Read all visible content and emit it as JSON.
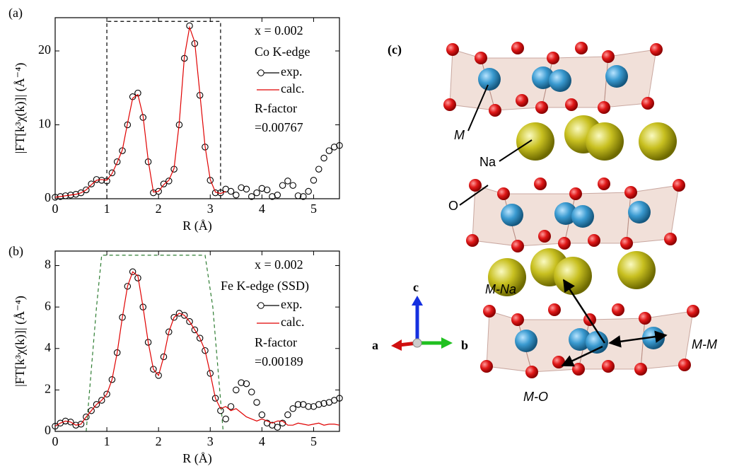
{
  "chart_data": [
    {
      "type": "line",
      "panel_label": "(a)",
      "xlabel": "R (Å)",
      "ylabel": "|FT[k³χ(k)]| (Å⁻⁴)",
      "annotations": [
        "x = 0.002",
        "Co K-edge",
        "R-factor",
        "=0.00767"
      ],
      "xlim": [
        0,
        5.5
      ],
      "ylim": [
        0,
        24.5
      ],
      "xticks": [
        0,
        1,
        2,
        3,
        4,
        5
      ],
      "yticks": [
        0,
        10,
        20
      ],
      "x": [
        0,
        0.1,
        0.2,
        0.3,
        0.4,
        0.5,
        0.6,
        0.7,
        0.8,
        0.9,
        1,
        1.1,
        1.2,
        1.3,
        1.4,
        1.5,
        1.6,
        1.7,
        1.8,
        1.9,
        2,
        2.1,
        2.2,
        2.3,
        2.4,
        2.5,
        2.6,
        2.7,
        2.8,
        2.9,
        3,
        3.1,
        3.2,
        3.3,
        3.4,
        3.5,
        3.6,
        3.7,
        3.8,
        3.9,
        4,
        4.1,
        4.2,
        4.3,
        4.4,
        4.5,
        4.6,
        4.7,
        4.8,
        4.9,
        5,
        5.1,
        5.2,
        5.3,
        5.4,
        5.5
      ],
      "series": [
        {
          "name": "exp.",
          "color": "#000000",
          "marker": "circle",
          "values": [
            0.2,
            0.3,
            0.4,
            0.5,
            0.6,
            0.8,
            1.2,
            2.0,
            2.6,
            2.5,
            2.4,
            3.5,
            5.0,
            6.5,
            10.0,
            13.8,
            14.3,
            11.0,
            5.0,
            0.8,
            1.0,
            2.0,
            2.4,
            4.0,
            10.0,
            19.0,
            23.4,
            21.0,
            14.0,
            7.0,
            2.5,
            0.8,
            0.8,
            1.3,
            1.0,
            0.5,
            1.5,
            1.3,
            0.3,
            0.8,
            1.4,
            1.2,
            0.3,
            0.5,
            1.8,
            2.4,
            1.8,
            0.4,
            0.3,
            1.0,
            2.5,
            4.0,
            5.5,
            6.5,
            7.0,
            7.2
          ]
        },
        {
          "name": "calc.",
          "color": "#e00000",
          "values": [
            0.2,
            0.3,
            0.4,
            0.5,
            0.6,
            0.8,
            1.2,
            1.9,
            2.5,
            2.6,
            2.5,
            3.4,
            4.9,
            6.6,
            10.2,
            13.6,
            14.1,
            11.2,
            5.2,
            0.9,
            1.0,
            1.9,
            2.5,
            4.1,
            10.2,
            19.2,
            23.2,
            21.2,
            14.2,
            7.1,
            2.6,
            0.9,
            0.7,
            1.0,
            null,
            null,
            null,
            null,
            null,
            null,
            null,
            null,
            null,
            null,
            null,
            null,
            null,
            null,
            null,
            null,
            null,
            null,
            null,
            null,
            null,
            null
          ]
        }
      ],
      "window": {
        "color": "#000000",
        "x": [
          1,
          1,
          3.2,
          3.2
        ],
        "values": [
          0,
          24,
          24,
          0
        ]
      }
    },
    {
      "type": "line",
      "panel_label": "(b)",
      "xlabel": "R (Å)",
      "ylabel": "|FT[k³χ(k)]| (Å⁻⁴)",
      "annotations": [
        "x = 0.002",
        "Fe K-edge (SSD)",
        "R-factor",
        "=0.00189"
      ],
      "xlim": [
        0,
        5.5
      ],
      "ylim": [
        0,
        8.7
      ],
      "xticks": [
        0,
        1,
        2,
        3,
        4,
        5
      ],
      "yticks": [
        0,
        2,
        4,
        6,
        8
      ],
      "x": [
        0,
        0.1,
        0.2,
        0.3,
        0.4,
        0.5,
        0.6,
        0.7,
        0.8,
        0.9,
        1,
        1.1,
        1.2,
        1.3,
        1.4,
        1.5,
        1.6,
        1.7,
        1.8,
        1.9,
        2,
        2.1,
        2.2,
        2.3,
        2.4,
        2.5,
        2.6,
        2.7,
        2.8,
        2.9,
        3,
        3.1,
        3.2,
        3.3,
        3.4,
        3.5,
        3.6,
        3.7,
        3.8,
        3.9,
        4,
        4.1,
        4.2,
        4.3,
        4.4,
        4.5,
        4.6,
        4.7,
        4.8,
        4.9,
        5,
        5.1,
        5.2,
        5.3,
        5.4,
        5.5
      ],
      "series": [
        {
          "name": "exp.",
          "color": "#000000",
          "marker": "circle",
          "values": [
            0.25,
            0.4,
            0.5,
            0.45,
            0.3,
            0.35,
            0.7,
            1.0,
            1.3,
            1.5,
            1.8,
            2.5,
            3.8,
            5.5,
            7.0,
            7.7,
            7.4,
            6.0,
            4.3,
            3.0,
            2.7,
            3.6,
            4.8,
            5.5,
            5.7,
            5.6,
            5.3,
            4.9,
            4.5,
            3.9,
            2.8,
            1.6,
            1.0,
            0.6,
            1.2,
            2.0,
            2.35,
            2.3,
            1.9,
            1.4,
            0.8,
            0.4,
            0.3,
            0.2,
            0.4,
            0.8,
            1.1,
            1.3,
            1.3,
            1.2,
            1.2,
            1.3,
            1.35,
            1.4,
            1.5,
            1.6
          ]
        },
        {
          "name": "calc.",
          "color": "#e00000",
          "values": [
            0.25,
            0.4,
            0.5,
            0.45,
            0.3,
            0.35,
            0.7,
            1.0,
            1.3,
            1.5,
            1.8,
            2.5,
            3.8,
            5.5,
            7.0,
            7.7,
            7.5,
            6.0,
            4.3,
            3.0,
            2.7,
            3.6,
            4.8,
            5.5,
            5.7,
            5.6,
            5.3,
            4.9,
            4.5,
            3.9,
            2.8,
            1.6,
            1.1,
            1.2,
            1.0,
            1.1,
            0.9,
            0.7,
            0.6,
            0.5,
            0.6,
            0.5,
            0.4,
            0.5,
            0.5,
            0.3,
            0.3,
            0.4,
            0.35,
            0.3,
            0.35,
            0.4,
            0.3,
            0.35,
            0.35,
            0.3
          ]
        }
      ],
      "window": {
        "color": "#2e7d32",
        "x": [
          0.6,
          0.8,
          0.9,
          2.9,
          3.05,
          3.25
        ],
        "values": [
          0,
          6,
          8.5,
          8.5,
          6,
          0
        ]
      }
    }
  ],
  "diagram": {
    "label": "(c)",
    "atoms": [
      "M",
      "Na",
      "O"
    ],
    "bonds": [
      "M-Na",
      "M-M",
      "M-O"
    ],
    "axes": [
      "a",
      "b",
      "c"
    ]
  }
}
